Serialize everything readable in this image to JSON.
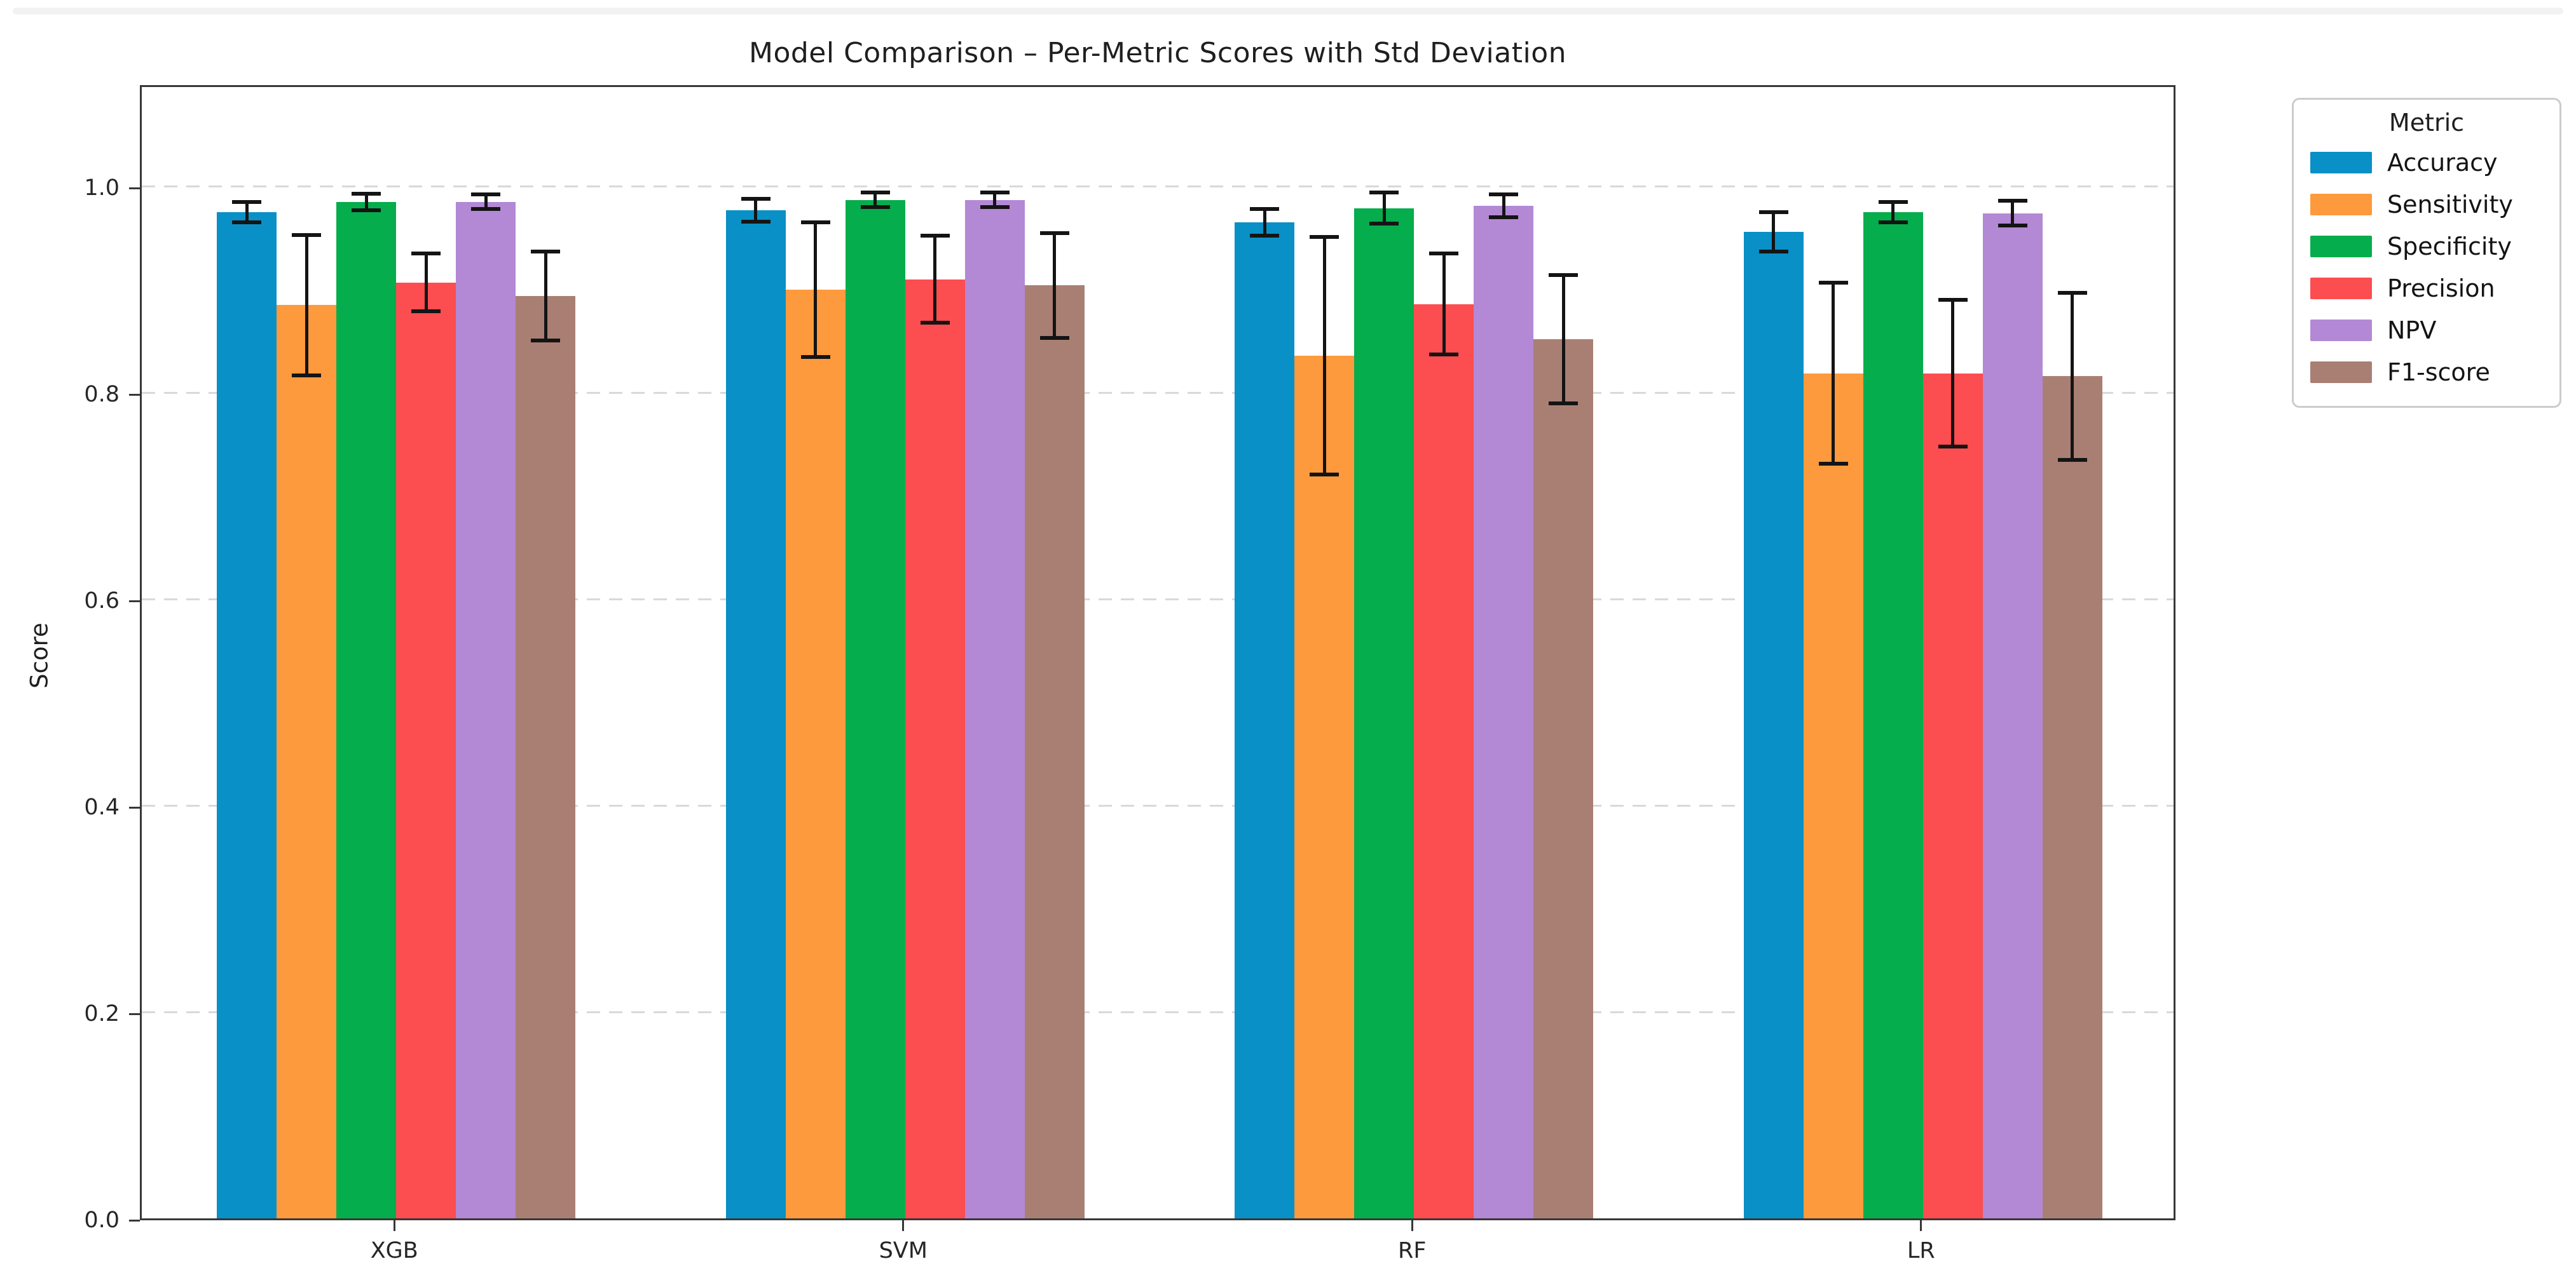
{
  "page": {
    "top_strip_color": "#f2f2f2",
    "background_color": "#ffffff"
  },
  "chart_data": {
    "type": "bar",
    "title": "Model Comparison – Per-Metric Scores with Std Deviation",
    "ylabel": "Score",
    "xlabel": "",
    "ylim": [
      0,
      1.1
    ],
    "grid": true,
    "grid_values": [
      0.2,
      0.4,
      0.6,
      0.8,
      1.0
    ],
    "yticks": [
      {
        "label": "0.0",
        "value": 0.0
      },
      {
        "label": "0.2",
        "value": 0.2
      },
      {
        "label": "0.4",
        "value": 0.4
      },
      {
        "label": "0.6",
        "value": 0.6
      },
      {
        "label": "0.8",
        "value": 0.8
      },
      {
        "label": "1.0",
        "value": 1.0
      }
    ],
    "categories": [
      "XGB",
      "SVM",
      "RF",
      "LR"
    ],
    "legend": {
      "title": "Metric",
      "position": "outside-right"
    },
    "series": [
      {
        "name": "Accuracy",
        "color": "#0990c6",
        "values": [
          0.975,
          0.977,
          0.965,
          0.956
        ],
        "errors": [
          0.01,
          0.011,
          0.013,
          0.019
        ]
      },
      {
        "name": "Sensitivity",
        "color": "#fd9a3d",
        "values": [
          0.885,
          0.9,
          0.836,
          0.819
        ],
        "errors": [
          0.068,
          0.065,
          0.115,
          0.088
        ]
      },
      {
        "name": "Specificity",
        "color": "#05ad4c",
        "values": [
          0.985,
          0.987,
          0.979,
          0.975
        ],
        "errors": [
          0.008,
          0.007,
          0.015,
          0.01
        ]
      },
      {
        "name": "Precision",
        "color": "#fc4d50",
        "values": [
          0.907,
          0.91,
          0.886,
          0.819
        ],
        "errors": [
          0.028,
          0.042,
          0.049,
          0.071
        ]
      },
      {
        "name": "NPV",
        "color": "#b388d4",
        "values": [
          0.985,
          0.987,
          0.981,
          0.974
        ],
        "errors": [
          0.007,
          0.007,
          0.011,
          0.012
        ]
      },
      {
        "name": "F1-score",
        "color": "#a97f74",
        "values": [
          0.894,
          0.904,
          0.852,
          0.816
        ],
        "errors": [
          0.043,
          0.051,
          0.062,
          0.081
        ]
      }
    ]
  }
}
